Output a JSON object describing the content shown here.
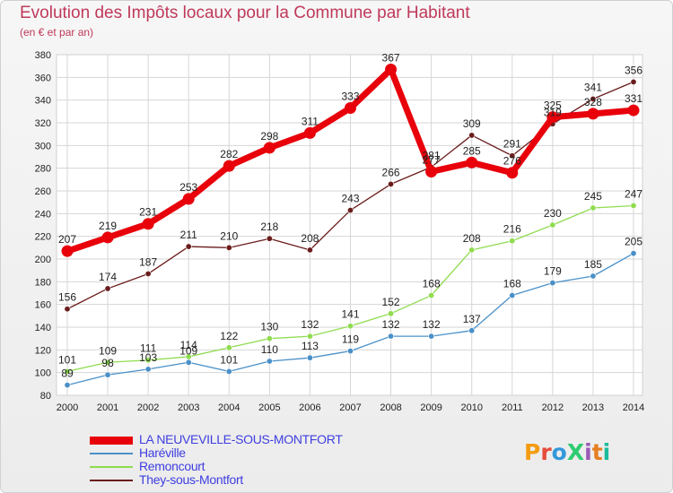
{
  "title": "Evolution des Impôts locaux pour la Commune par Habitant",
  "subtitle": "(en € et par an)",
  "logo": {
    "text": "ProXiti",
    "colors": [
      "#f39c12",
      "#e74c3c",
      "#3498db",
      "#2ecc71",
      "#9b59b6",
      "#e67e22",
      "#1abc9c"
    ]
  },
  "chart_data": {
    "type": "line",
    "x": [
      2000,
      2001,
      2002,
      2003,
      2004,
      2005,
      2006,
      2007,
      2008,
      2009,
      2010,
      2011,
      2012,
      2013,
      2014
    ],
    "ylim": [
      80,
      380
    ],
    "yticks": [
      80,
      100,
      120,
      140,
      160,
      180,
      200,
      220,
      240,
      260,
      280,
      300,
      320,
      340,
      360,
      380
    ],
    "grid": true,
    "legend_position": "bottom-left",
    "series": [
      {
        "name": "Haréville",
        "color": "#4a90c8",
        "values": [
          89,
          98,
          103,
          109,
          101,
          110,
          113,
          119,
          132,
          132,
          137,
          168,
          179,
          185,
          205
        ],
        "labels": [
          "89",
          "98",
          "103",
          "109",
          "101",
          "110",
          "113",
          "119",
          "132",
          "132",
          "137",
          "168",
          "179",
          "185",
          "205"
        ]
      },
      {
        "name": "Remoncourt",
        "color": "#8fdc4f",
        "values": [
          101,
          109,
          111,
          114,
          122,
          130,
          132,
          141,
          152,
          168,
          208,
          216,
          230,
          245,
          247
        ],
        "labels": [
          "101",
          "109",
          "111",
          "114",
          "122",
          "130",
          "132",
          "141",
          "152",
          "168",
          "208",
          "216",
          "230",
          "245",
          "247"
        ]
      },
      {
        "name": "They-sous-Montfort",
        "color": "#6b1d1d",
        "values": [
          156,
          174,
          187,
          211,
          210,
          218,
          208,
          243,
          266,
          281,
          309,
          291,
          319,
          341,
          356
        ],
        "labels": [
          "156",
          "174",
          "187",
          "211",
          "210",
          "218",
          "208",
          "243",
          "266",
          "281",
          "309",
          "291",
          "319",
          "341",
          "356"
        ]
      },
      {
        "name": "LA NEUVEVILLE-SOUS-MONTFORT",
        "color": "#e8000b",
        "values": [
          207,
          219,
          231,
          253,
          282,
          298,
          311,
          333,
          367,
          277,
          285,
          276,
          325,
          328,
          331
        ],
        "labels": [
          "207",
          "219",
          "231",
          "253",
          "282",
          "298",
          "311",
          "333",
          "367",
          "277",
          "285",
          "276",
          "325",
          "328",
          "331"
        ]
      }
    ]
  },
  "legend": [
    {
      "label": "LA NEUVEVILLE-SOUS-MONTFORT",
      "color": "#e8000b"
    },
    {
      "label": "Haréville",
      "color": "#4a90c8"
    },
    {
      "label": "Remoncourt",
      "color": "#8fdc4f"
    },
    {
      "label": "They-sous-Montfort",
      "color": "#6b1d1d"
    }
  ]
}
